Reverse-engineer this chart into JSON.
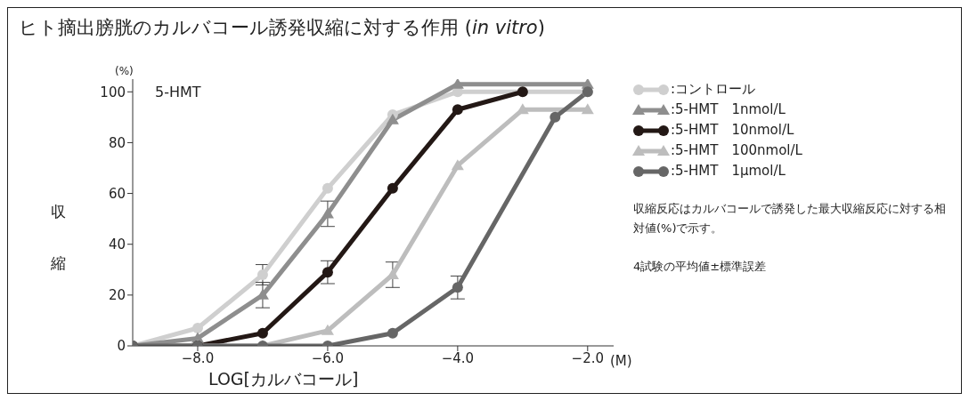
{
  "chart_data": {
    "type": "line",
    "title": "ヒト摘出膀胱のカルバコール誘発収縮に対する作用 (in vitro)",
    "xlabel": "LOG[カルバコール]",
    "ylabel": "収縮",
    "annotations": [
      "(%)",
      "(M)",
      "5-HMT",
      "収縮反応はカルバコールで誘発した最大収縮反応に対する相対値(%)で示す。",
      "4試験の平均値±標準誤差"
    ],
    "xlim": [
      -9,
      -1.6
    ],
    "xticks": [
      {
        "value": -8,
        "label": "−8.0"
      },
      {
        "value": -6,
        "label": "−6.0"
      },
      {
        "value": -4,
        "label": "−4.0"
      },
      {
        "value": -2,
        "label": "−2.0"
      }
    ],
    "ylim": [
      0,
      105
    ],
    "yticks": [
      0,
      20,
      40,
      60,
      80,
      100
    ],
    "grid": false,
    "legend": "right",
    "line_style": "solid",
    "series": [
      {
        "name": ":コントロール",
        "color": "#cfcfcf",
        "marker": "circle",
        "x": [
          -9,
          -8,
          -7,
          -6,
          -5,
          -4,
          -2
        ],
        "values": [
          0,
          7,
          28,
          62,
          91,
          100,
          100
        ],
        "errors": [
          null,
          null,
          4,
          null,
          null,
          null,
          null
        ]
      },
      {
        "name": ":5-HMT　1nmol/L",
        "color": "#8e8e8e",
        "marker": "triangle",
        "x": [
          -9,
          -8,
          -7,
          -6,
          -5,
          -4,
          -2
        ],
        "values": [
          0,
          3,
          20,
          52,
          89,
          103,
          103
        ],
        "errors": [
          null,
          null,
          5,
          5,
          null,
          null,
          null
        ]
      },
      {
        "name": ":5-HMT　10nmol/L",
        "color": "#231815",
        "marker": "circle",
        "x": [
          -9,
          -8,
          -7,
          -6,
          -5,
          -4,
          -3
        ],
        "values": [
          0,
          0,
          5,
          29,
          62,
          93,
          100
        ],
        "errors": [
          null,
          null,
          null,
          4.5,
          null,
          null,
          null
        ]
      },
      {
        "name": ":5-HMT　100nmol/L",
        "color": "#bdbdbd",
        "marker": "triangle",
        "x": [
          -9,
          -8,
          -7,
          -6,
          -5,
          -4,
          -3,
          -2
        ],
        "values": [
          0,
          0,
          0,
          6,
          28,
          71,
          93,
          93
        ],
        "errors": [
          null,
          null,
          null,
          null,
          5,
          null,
          null,
          null
        ]
      },
      {
        "name": ":5-HMT　1μmol/L",
        "color": "#666666",
        "marker": "circle",
        "x": [
          -9,
          -8,
          -7,
          -6,
          -5,
          -4,
          -2.5,
          -2
        ],
        "values": [
          0,
          0,
          0,
          0,
          5,
          23,
          90,
          100
        ],
        "errors": [
          null,
          null,
          null,
          null,
          null,
          4.5,
          null,
          null
        ]
      }
    ]
  }
}
